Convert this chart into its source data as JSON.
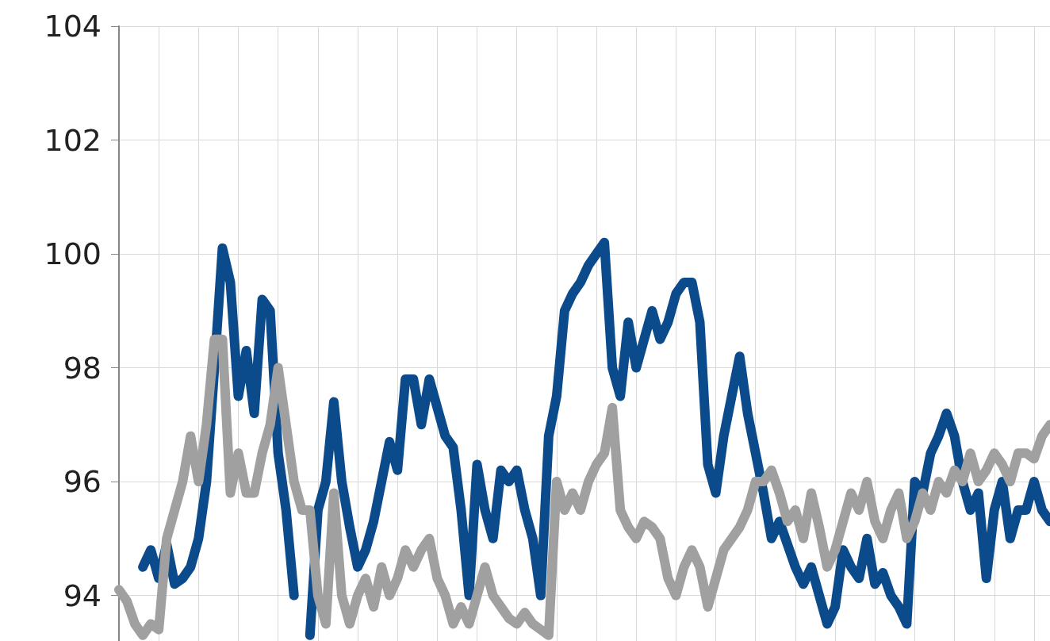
{
  "chart_data": {
    "type": "line",
    "categories": [
      null,
      null,
      null,
      null,
      null,
      null,
      null,
      null,
      null,
      null,
      null,
      null,
      null,
      null,
      null,
      null,
      null,
      null,
      null,
      null,
      null,
      null,
      null,
      null,
      null,
      null,
      null,
      null,
      null,
      null,
      null,
      null,
      null,
      null,
      null,
      null,
      null,
      null,
      null,
      null,
      null,
      null,
      null,
      null,
      null,
      null,
      null,
      null,
      null,
      null,
      null,
      null,
      null,
      null,
      null,
      null,
      null,
      null,
      null,
      null,
      null,
      null,
      null,
      null,
      null,
      null,
      null,
      null,
      null,
      null,
      null,
      null,
      null,
      null,
      null,
      null,
      null,
      null,
      null,
      null,
      null,
      null,
      null,
      null,
      null,
      null,
      null,
      null,
      null,
      null,
      null,
      null,
      null,
      null,
      null,
      null,
      null,
      null,
      null,
      null,
      null,
      null,
      null,
      null,
      null,
      null,
      null,
      null,
      null,
      null,
      null,
      null,
      null,
      null,
      null,
      null,
      null,
      null
    ],
    "series": [
      {
        "color": "#0b4a8b",
        "values": [
          null,
          null,
          null,
          94.5,
          94.8,
          94.3,
          94.9,
          94.2,
          94.3,
          94.5,
          95.0,
          96.0,
          98.0,
          100.1,
          99.5,
          97.5,
          98.3,
          97.2,
          99.2,
          99.0,
          96.5,
          95.5,
          94.0,
          null,
          93.3,
          95.5,
          96.0,
          97.4,
          96.0,
          95.2,
          94.5,
          94.8,
          95.3,
          96.0,
          96.7,
          96.2,
          97.8,
          97.8,
          97.0,
          97.8,
          97.3,
          96.8,
          96.6,
          95.5,
          94.0,
          96.3,
          95.5,
          95.0,
          96.2,
          96.0,
          96.2,
          95.5,
          95.0,
          94.0,
          96.8,
          97.5,
          99.0,
          99.3,
          99.5,
          99.8,
          100.0,
          100.2,
          98.0,
          97.5,
          98.8,
          98.0,
          98.5,
          99.0,
          98.5,
          98.8,
          99.3,
          99.5,
          99.5,
          98.8,
          96.3,
          95.8,
          96.8,
          97.5,
          98.2,
          97.2,
          96.5,
          95.8,
          95.0,
          95.3,
          94.9,
          94.5,
          94.2,
          94.5,
          94.0,
          93.5,
          93.8,
          94.8,
          94.5,
          94.3,
          95.0,
          94.2,
          94.4,
          94.0,
          93.8,
          93.5,
          96.0,
          95.8,
          96.5,
          96.8,
          97.2,
          96.8,
          96.0,
          95.5,
          95.8,
          94.3,
          95.5,
          96.0,
          95.0,
          95.5,
          95.5,
          96.0,
          95.5,
          95.3
        ]
      },
      {
        "color": "#a0a0a0",
        "values": [
          94.1,
          93.9,
          93.5,
          93.3,
          93.5,
          93.4,
          95.0,
          95.5,
          96.0,
          96.8,
          96.0,
          97.0,
          98.5,
          98.5,
          95.8,
          96.5,
          95.8,
          95.8,
          96.5,
          97.0,
          98.0,
          97.0,
          96.0,
          95.5,
          95.5,
          94.0,
          93.5,
          95.8,
          94.0,
          93.5,
          94.0,
          94.3,
          93.8,
          94.5,
          94.0,
          94.3,
          94.8,
          94.5,
          94.8,
          95.0,
          94.3,
          94.0,
          93.5,
          93.8,
          93.5,
          94.0,
          94.5,
          94.0,
          93.8,
          93.6,
          93.5,
          93.7,
          93.5,
          93.4,
          93.3,
          96.0,
          95.5,
          95.8,
          95.5,
          96.0,
          96.3,
          96.5,
          97.3,
          95.5,
          95.2,
          95.0,
          95.3,
          95.2,
          95.0,
          94.3,
          94.0,
          94.5,
          94.8,
          94.5,
          93.8,
          94.3,
          94.8,
          95.0,
          95.2,
          95.5,
          96.0,
          96.0,
          96.2,
          95.8,
          95.3,
          95.5,
          95.0,
          95.8,
          95.2,
          94.5,
          94.8,
          95.3,
          95.8,
          95.5,
          96.0,
          95.3,
          95.0,
          95.5,
          95.8,
          95.0,
          95.3,
          95.8,
          95.5,
          96.0,
          95.8,
          96.2,
          96.0,
          96.5,
          96.0,
          96.2,
          96.5,
          96.3,
          96.0,
          96.5,
          96.5,
          96.4,
          96.8,
          97.0
        ]
      }
    ],
    "ylim": [
      93.2,
      104
    ],
    "yticks": [
      94,
      96,
      98,
      100,
      102,
      104
    ],
    "grid": true,
    "marker": "none",
    "line_style": "solid"
  }
}
